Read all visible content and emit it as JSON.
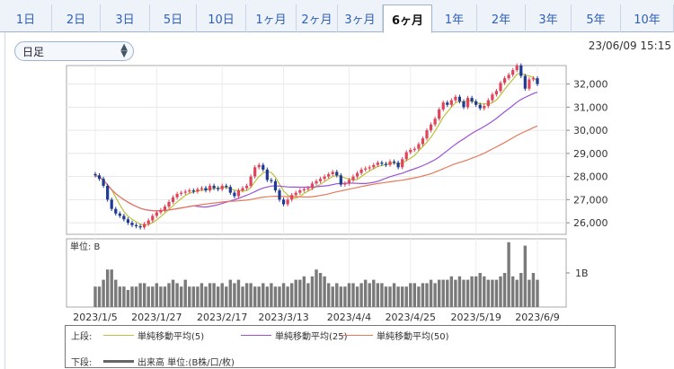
{
  "tabs": [
    {
      "label": "1日"
    },
    {
      "label": "2日"
    },
    {
      "label": "3日"
    },
    {
      "label": "5日"
    },
    {
      "label": "10日"
    },
    {
      "label": "1ヶ月"
    },
    {
      "label": "2ヶ月"
    },
    {
      "label": "3ヶ月"
    },
    {
      "label": "6ヶ月"
    },
    {
      "label": "1年"
    },
    {
      "label": "2年"
    },
    {
      "label": "3年"
    },
    {
      "label": "5年"
    },
    {
      "label": "10年"
    }
  ],
  "active_tab": "6ヶ月",
  "period_select": {
    "value": "日足"
  },
  "timestamp": "23/06/09 15:15",
  "legend": {
    "upper_label": "上段:",
    "lower_label": "下段:",
    "ma5": "単純移動平均(5)",
    "ma25": "単純移動平均(25)",
    "ma50": "単純移動平均(50)",
    "volume": "出来高 単位:(B株/口/枚)"
  },
  "colors": {
    "up": "#e0445b",
    "down": "#1f3a93",
    "ma5": "#b9c23a",
    "ma25": "#9b52d6",
    "ma50": "#e7795a",
    "volume": "#7a7a7a"
  },
  "chart_data": {
    "type": "candlestick",
    "price_ticks": [
      "32,000",
      "31,000",
      "30,000",
      "29,000",
      "28,000",
      "27,000",
      "26,000"
    ],
    "price_tick_values": [
      32000,
      31000,
      30000,
      29000,
      28000,
      27000,
      26000
    ],
    "ylim": [
      25500,
      32800
    ],
    "x_labels": [
      "2023/1/5",
      "2023/1/27",
      "2023/2/17",
      "2023/3/13",
      "2023/4/4",
      "2023/4/25",
      "2023/5/19",
      "2023/6/9"
    ],
    "volume_unit_label": "単位: B",
    "volume_tick": "1B",
    "volume_tick_value": 1.0,
    "volume_ylim": [
      0,
      2.0
    ],
    "closes": [
      28050,
      27900,
      27600,
      27000,
      26600,
      26400,
      26300,
      26150,
      26000,
      25900,
      25850,
      25800,
      25950,
      26100,
      26300,
      26450,
      26550,
      26700,
      26900,
      27100,
      27250,
      27300,
      27350,
      27400,
      27350,
      27450,
      27500,
      27400,
      27600,
      27500,
      27450,
      27600,
      27550,
      27300,
      27150,
      27400,
      27500,
      27600,
      28000,
      28400,
      28500,
      28300,
      27850,
      27800,
      27400,
      27000,
      26800,
      27000,
      27200,
      27300,
      27400,
      27450,
      27500,
      27700,
      27800,
      27900,
      28000,
      28100,
      28200,
      28050,
      27650,
      27700,
      27850,
      28000,
      28150,
      28300,
      28350,
      28400,
      28500,
      28600,
      28550,
      28500,
      28650,
      28600,
      28400,
      28750,
      29050,
      29150,
      29200,
      29400,
      29650,
      30000,
      30250,
      30500,
      30900,
      31200,
      31100,
      31300,
      31450,
      31250,
      31000,
      31400,
      31250,
      31100,
      30950,
      31050,
      31300,
      31550,
      31700,
      32050,
      32250,
      32400,
      32600,
      32800,
      32350,
      31800,
      32200,
      32250,
      32000
    ],
    "volumes": [
      0.6,
      0.6,
      0.8,
      1.1,
      1.1,
      0.8,
      0.6,
      0.6,
      0.5,
      0.6,
      0.6,
      0.7,
      0.7,
      0.6,
      0.6,
      0.7,
      0.6,
      0.6,
      0.7,
      0.8,
      0.7,
      0.6,
      0.8,
      0.6,
      0.6,
      0.6,
      0.7,
      0.6,
      0.7,
      0.7,
      0.6,
      0.7,
      0.6,
      0.8,
      0.7,
      0.8,
      0.6,
      0.7,
      0.7,
      0.6,
      0.6,
      0.7,
      0.6,
      0.7,
      0.6,
      0.6,
      0.7,
      0.6,
      0.7,
      0.8,
      0.8,
      0.9,
      0.7,
      0.9,
      1.1,
      1.0,
      0.9,
      0.7,
      0.6,
      0.7,
      0.6,
      0.6,
      0.7,
      0.7,
      0.6,
      0.7,
      0.8,
      0.7,
      0.8,
      0.7,
      0.7,
      0.6,
      0.6,
      0.7,
      0.6,
      0.6,
      0.6,
      0.7,
      0.7,
      0.6,
      0.7,
      0.7,
      0.8,
      0.7,
      0.8,
      0.8,
      0.8,
      0.9,
      0.8,
      0.9,
      0.8,
      0.8,
      0.9,
      0.9,
      1.0,
      0.9,
      0.8,
      0.8,
      0.8,
      0.9,
      1.0,
      1.9,
      0.9,
      0.8,
      1.0,
      1.8,
      0.8,
      1.0,
      0.8
    ]
  }
}
